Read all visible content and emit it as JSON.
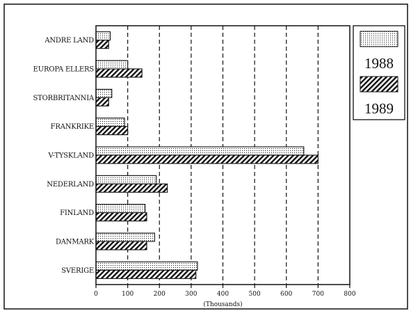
{
  "chart_data": {
    "type": "bar",
    "orientation": "horizontal",
    "categories": [
      "ANDRE LAND",
      "EUROPA ELLERS",
      "STORBRITANNIA",
      "FRANKRIKE",
      "V-TYSKLAND",
      "NEDERLAND",
      "FINLAND",
      "DANMARK",
      "SVERIGE"
    ],
    "series": [
      {
        "name": "1988",
        "values": [
          45,
          100,
          50,
          90,
          655,
          190,
          155,
          185,
          320
        ]
      },
      {
        "name": "1989",
        "values": [
          40,
          145,
          40,
          100,
          700,
          225,
          160,
          160,
          315
        ]
      }
    ],
    "xticks": [
      0,
      100,
      200,
      300,
      400,
      500,
      600,
      700,
      800
    ],
    "xlim": [
      0,
      800
    ],
    "xlabel": "(Thousands)",
    "grid": "vertical-dashed",
    "legend_position": "top-right",
    "colors": {
      "ink": "#111111",
      "background": "#ffffff"
    },
    "patterns": [
      "dotted",
      "diagonal-hatch"
    ]
  }
}
